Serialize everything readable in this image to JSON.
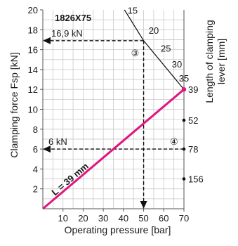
{
  "chart_data": {
    "type": "line",
    "title": "1826X75",
    "xlabel": "Operating pressure [bar]",
    "ylabel": "Clamping force Fsp [kN]",
    "ylabel_right": "Length of clamping lever [mm]",
    "xlim": [
      0,
      70
    ],
    "ylim": [
      0,
      20
    ],
    "x_ticks": [
      "10",
      "20",
      "30",
      "40",
      "50",
      "60",
      "70"
    ],
    "y_ticks": [
      "2",
      "4",
      "6",
      "8",
      "10",
      "12",
      "14",
      "16",
      "18",
      "20"
    ],
    "grid": true,
    "series": [
      {
        "name": "L = 39 mm",
        "x": [
          0,
          70
        ],
        "y": [
          0,
          12
        ],
        "color": "#e0157f"
      }
    ],
    "max_force_boundary": [
      {
        "x": 40.5,
        "y": 20
      },
      {
        "x": 50,
        "y": 16.9
      },
      {
        "x": 70,
        "y": 12
      }
    ],
    "boundary_labels": [
      {
        "text": "15",
        "x": 42,
        "y": 19.6
      },
      {
        "text": "20",
        "x": 52.5,
        "y": 17.6
      },
      {
        "text": "25",
        "x": 58.5,
        "y": 15.8
      },
      {
        "text": "30",
        "x": 64,
        "y": 14.2
      },
      {
        "text": "35",
        "x": 67.5,
        "y": 12.8
      }
    ],
    "right_labels": [
      {
        "text": "39",
        "y": 12
      },
      {
        "text": "52",
        "y": 8.9
      },
      {
        "text": "78",
        "y": 6
      },
      {
        "text": "156",
        "y": 3
      }
    ],
    "annotations": {
      "force_max": {
        "label": "16,9 kN",
        "value_kn": 16.9,
        "pressure_bar": 50,
        "marker": "③"
      },
      "force_example": {
        "label": "6 kN",
        "value_kn": 6,
        "marker": "④"
      }
    }
  }
}
